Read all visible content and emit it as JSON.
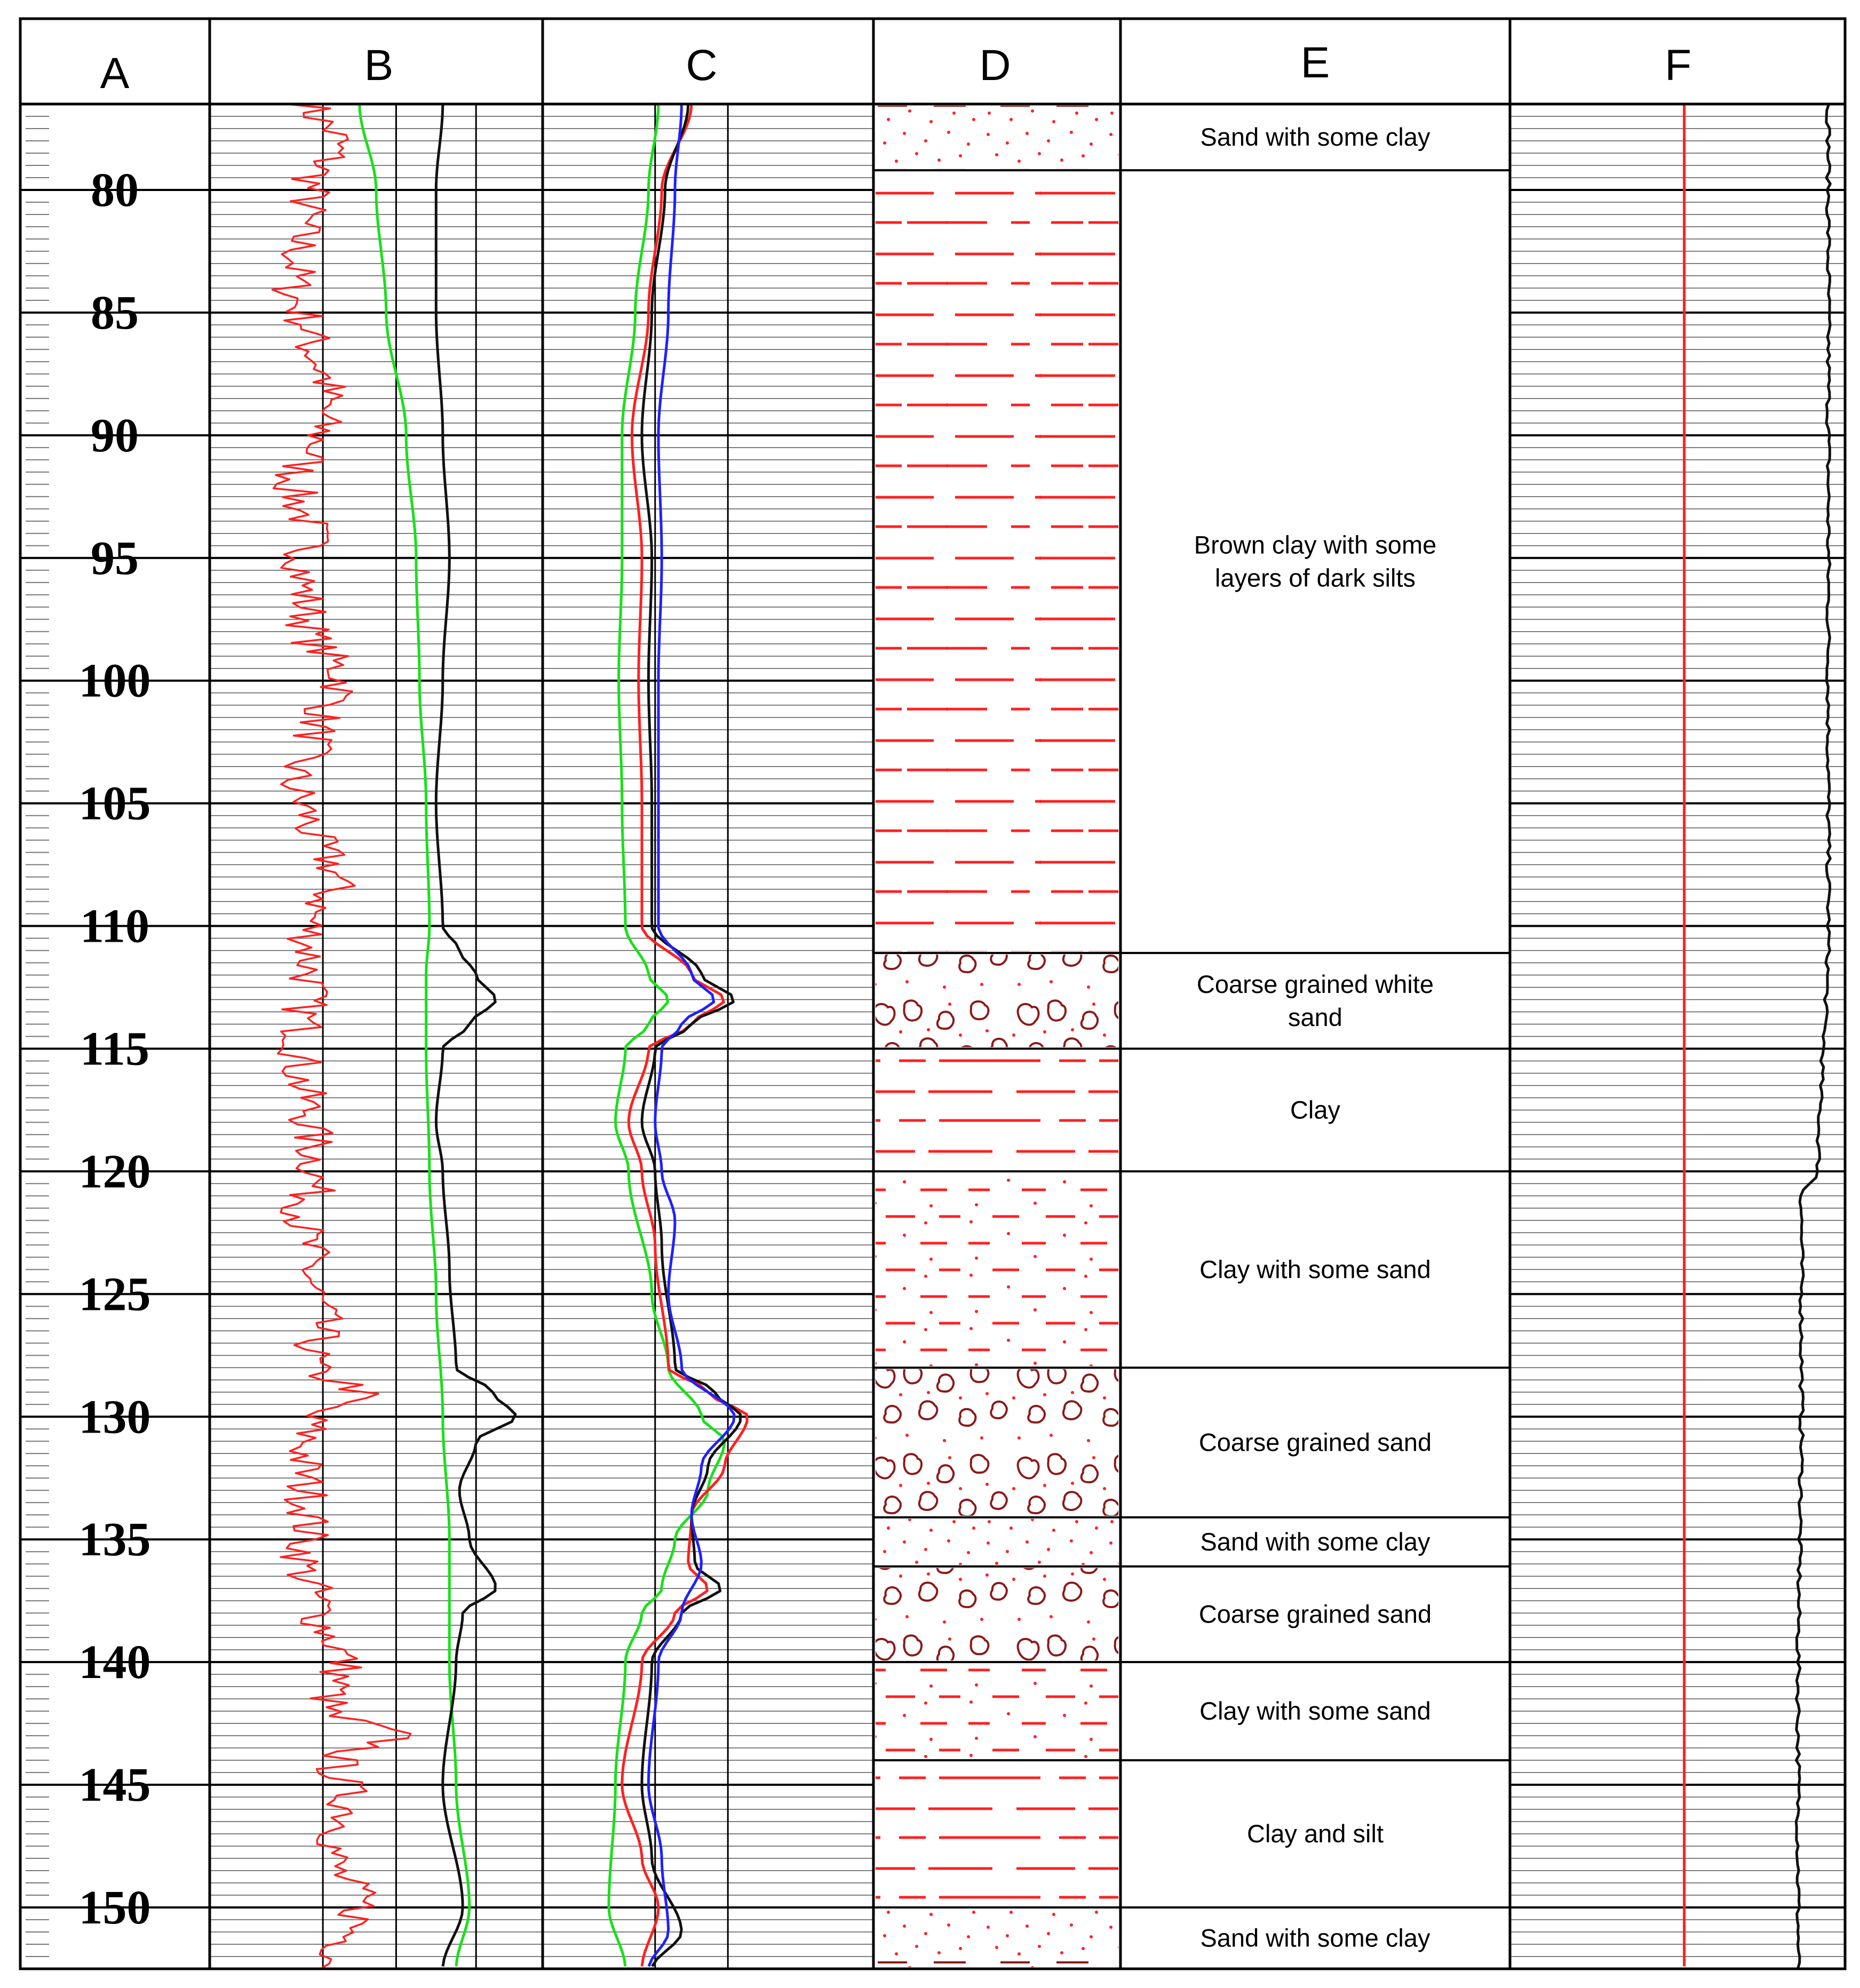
{
  "columns": [
    "A",
    "B",
    "C",
    "D",
    "E",
    "F"
  ],
  "depth_axis": {
    "min": 76.5,
    "max": 152.5,
    "labels": [
      80,
      85,
      90,
      95,
      100,
      105,
      110,
      115,
      120,
      125,
      130,
      135,
      140,
      145,
      150
    ]
  },
  "colors": {
    "red": "#ff2020",
    "green": "#18e018",
    "blue": "#2020ff",
    "black": "#111111",
    "brown": "#8b1a1a"
  },
  "units": [
    {
      "top": 76.5,
      "bottom": 79.2,
      "pattern": "sand-clay",
      "label": [
        "Sand with some clay"
      ]
    },
    {
      "top": 79.2,
      "bottom": 111.1,
      "pattern": "clay-silt",
      "label": [
        "Brown clay with some",
        "layers of dark silts"
      ]
    },
    {
      "top": 111.1,
      "bottom": 115.0,
      "pattern": "coarse-sand",
      "label": [
        "Coarse grained white",
        "sand"
      ]
    },
    {
      "top": 115.0,
      "bottom": 120.0,
      "pattern": "clay",
      "label": [
        "Clay"
      ]
    },
    {
      "top": 120.0,
      "bottom": 128.0,
      "pattern": "clay-sand",
      "label": [
        "Clay with some sand"
      ]
    },
    {
      "top": 128.0,
      "bottom": 134.1,
      "pattern": "coarse-sand",
      "label": [
        "Coarse grained sand"
      ]
    },
    {
      "top": 134.1,
      "bottom": 136.1,
      "pattern": "sand-clay",
      "label": [
        "Sand  with some clay"
      ]
    },
    {
      "top": 136.1,
      "bottom": 140.0,
      "pattern": "coarse-sand",
      "label": [
        "Coarse grained sand"
      ]
    },
    {
      "top": 140.0,
      "bottom": 144.0,
      "pattern": "clay-sand",
      "label": [
        "Clay with some sand"
      ]
    },
    {
      "top": 144.0,
      "bottom": 150.0,
      "pattern": "clay",
      "label": [
        "Clay and silt"
      ]
    },
    {
      "top": 150.0,
      "bottom": 152.5,
      "pattern": "sand-clay",
      "label": [
        "Sand  with some clay"
      ]
    }
  ],
  "chart_data": {
    "type": "line",
    "x_axis": "depth",
    "tracks": [
      {
        "column": "B",
        "series": [
          {
            "color": "red",
            "style": "noisy",
            "points": [
              [
                76.5,
                0.3
              ],
              [
                78,
                0.38
              ],
              [
                80,
                0.3
              ],
              [
                82,
                0.27
              ],
              [
                84,
                0.25
              ],
              [
                86,
                0.3
              ],
              [
                88,
                0.35
              ],
              [
                90,
                0.33
              ],
              [
                92,
                0.25
              ],
              [
                94,
                0.3
              ],
              [
                96,
                0.28
              ],
              [
                98,
                0.3
              ],
              [
                100,
                0.4
              ],
              [
                102,
                0.32
              ],
              [
                104,
                0.25
              ],
              [
                106,
                0.3
              ],
              [
                108,
                0.38
              ],
              [
                110,
                0.3
              ],
              [
                112,
                0.3
              ],
              [
                114,
                0.28
              ],
              [
                116,
                0.27
              ],
              [
                118,
                0.3
              ],
              [
                120,
                0.32
              ],
              [
                122,
                0.28
              ],
              [
                124,
                0.3
              ],
              [
                126,
                0.33
              ],
              [
                128,
                0.3
              ],
              [
                129,
                0.45
              ],
              [
                130,
                0.3
              ],
              [
                132,
                0.28
              ],
              [
                134,
                0.3
              ],
              [
                136,
                0.28
              ],
              [
                138,
                0.33
              ],
              [
                140,
                0.4
              ],
              [
                142,
                0.35
              ],
              [
                143,
                0.55
              ],
              [
                144,
                0.38
              ],
              [
                146,
                0.42
              ],
              [
                148,
                0.37
              ],
              [
                150,
                0.45
              ],
              [
                152.5,
                0.38
              ]
            ]
          },
          {
            "color": "green",
            "style": "smooth",
            "points": [
              [
                76.5,
                0.45
              ],
              [
                80,
                0.5
              ],
              [
                85,
                0.53
              ],
              [
                90,
                0.59
              ],
              [
                95,
                0.62
              ],
              [
                100,
                0.63
              ],
              [
                105,
                0.65
              ],
              [
                110,
                0.66
              ],
              [
                112,
                0.65
              ],
              [
                115,
                0.65
              ],
              [
                120,
                0.66
              ],
              [
                125,
                0.68
              ],
              [
                130,
                0.7
              ],
              [
                135,
                0.72
              ],
              [
                140,
                0.72
              ],
              [
                145,
                0.74
              ],
              [
                150,
                0.78
              ],
              [
                152.5,
                0.74
              ]
            ]
          },
          {
            "color": "black",
            "style": "smooth",
            "points": [
              [
                76.5,
                0.7
              ],
              [
                80,
                0.68
              ],
              [
                85,
                0.68
              ],
              [
                90,
                0.7
              ],
              [
                95,
                0.72
              ],
              [
                100,
                0.7
              ],
              [
                105,
                0.68
              ],
              [
                110,
                0.7
              ],
              [
                111,
                0.75
              ],
              [
                112,
                0.8
              ],
              [
                113,
                0.86
              ],
              [
                114,
                0.78
              ],
              [
                115,
                0.7
              ],
              [
                118,
                0.68
              ],
              [
                120,
                0.7
              ],
              [
                124,
                0.72
              ],
              [
                128,
                0.74
              ],
              [
                129,
                0.85
              ],
              [
                130,
                0.92
              ],
              [
                131,
                0.8
              ],
              [
                133,
                0.75
              ],
              [
                135,
                0.78
              ],
              [
                137,
                0.86
              ],
              [
                138,
                0.76
              ],
              [
                140,
                0.74
              ],
              [
                145,
                0.7
              ],
              [
                150,
                0.76
              ],
              [
                152.5,
                0.7
              ]
            ]
          }
        ]
      },
      {
        "column": "C",
        "series": [
          {
            "color": "green",
            "style": "smooth",
            "points": [
              [
                76.5,
                0.35
              ],
              [
                80,
                0.32
              ],
              [
                85,
                0.28
              ],
              [
                90,
                0.24
              ],
              [
                95,
                0.24
              ],
              [
                100,
                0.23
              ],
              [
                105,
                0.24
              ],
              [
                110,
                0.25
              ],
              [
                112,
                0.32
              ],
              [
                113,
                0.38
              ],
              [
                114,
                0.32
              ],
              [
                115,
                0.25
              ],
              [
                118,
                0.22
              ],
              [
                120,
                0.26
              ],
              [
                125,
                0.33
              ],
              [
                128,
                0.38
              ],
              [
                130,
                0.48
              ],
              [
                131,
                0.55
              ],
              [
                133,
                0.5
              ],
              [
                135,
                0.4
              ],
              [
                137,
                0.36
              ],
              [
                138,
                0.3
              ],
              [
                140,
                0.25
              ],
              [
                145,
                0.22
              ],
              [
                150,
                0.2
              ],
              [
                152.5,
                0.25
              ]
            ]
          },
          {
            "color": "red",
            "style": "smooth",
            "points": [
              [
                76.5,
                0.45
              ],
              [
                80,
                0.36
              ],
              [
                85,
                0.32
              ],
              [
                90,
                0.27
              ],
              [
                95,
                0.3
              ],
              [
                100,
                0.29
              ],
              [
                105,
                0.3
              ],
              [
                110,
                0.3
              ],
              [
                112,
                0.45
              ],
              [
                113,
                0.55
              ],
              [
                114,
                0.45
              ],
              [
                115,
                0.32
              ],
              [
                118,
                0.26
              ],
              [
                120,
                0.3
              ],
              [
                123,
                0.34
              ],
              [
                128,
                0.38
              ],
              [
                129,
                0.5
              ],
              [
                130,
                0.62
              ],
              [
                132,
                0.55
              ],
              [
                134,
                0.45
              ],
              [
                136,
                0.44
              ],
              [
                137,
                0.5
              ],
              [
                138,
                0.4
              ],
              [
                140,
                0.3
              ],
              [
                145,
                0.24
              ],
              [
                148,
                0.3
              ],
              [
                150,
                0.35
              ],
              [
                152.5,
                0.3
              ]
            ]
          },
          {
            "color": "black",
            "style": "smooth",
            "points": [
              [
                76.5,
                0.44
              ],
              [
                80,
                0.37
              ],
              [
                85,
                0.33
              ],
              [
                90,
                0.3
              ],
              [
                95,
                0.33
              ],
              [
                100,
                0.32
              ],
              [
                105,
                0.33
              ],
              [
                110,
                0.33
              ],
              [
                112,
                0.48
              ],
              [
                113,
                0.58
              ],
              [
                114,
                0.45
              ],
              [
                115,
                0.34
              ],
              [
                118,
                0.3
              ],
              [
                120,
                0.34
              ],
              [
                123,
                0.36
              ],
              [
                128,
                0.4
              ],
              [
                129,
                0.52
              ],
              [
                130,
                0.6
              ],
              [
                132,
                0.5
              ],
              [
                134,
                0.45
              ],
              [
                136,
                0.46
              ],
              [
                137,
                0.54
              ],
              [
                138,
                0.42
              ],
              [
                140,
                0.33
              ],
              [
                145,
                0.3
              ],
              [
                148,
                0.33
              ],
              [
                151,
                0.42
              ],
              [
                152.5,
                0.33
              ]
            ]
          },
          {
            "color": "blue",
            "style": "smooth",
            "points": [
              [
                76.5,
                0.42
              ],
              [
                80,
                0.4
              ],
              [
                85,
                0.38
              ],
              [
                90,
                0.35
              ],
              [
                95,
                0.36
              ],
              [
                100,
                0.35
              ],
              [
                105,
                0.35
              ],
              [
                110,
                0.35
              ],
              [
                112,
                0.45
              ],
              [
                113,
                0.52
              ],
              [
                114,
                0.42
              ],
              [
                115,
                0.36
              ],
              [
                118,
                0.34
              ],
              [
                120,
                0.36
              ],
              [
                122,
                0.4
              ],
              [
                125,
                0.38
              ],
              [
                128,
                0.42
              ],
              [
                130,
                0.58
              ],
              [
                132,
                0.48
              ],
              [
                134,
                0.45
              ],
              [
                136,
                0.48
              ],
              [
                138,
                0.42
              ],
              [
                140,
                0.35
              ],
              [
                145,
                0.32
              ],
              [
                148,
                0.36
              ],
              [
                151,
                0.38
              ],
              [
                152.5,
                0.32
              ]
            ]
          }
        ]
      },
      {
        "column": "F",
        "series": [
          {
            "color": "red",
            "style": "straight",
            "points": [
              [
                76.5,
                0.52
              ],
              [
                152.5,
                0.52
              ]
            ]
          },
          {
            "color": "black",
            "style": "jitter",
            "points": [
              [
                76.5,
                0.95
              ],
              [
                100,
                0.95
              ],
              [
                110,
                0.95
              ],
              [
                120,
                0.92
              ],
              [
                121,
                0.87
              ],
              [
                130,
                0.87
              ],
              [
                140,
                0.86
              ],
              [
                152.5,
                0.86
              ]
            ]
          }
        ]
      }
    ]
  }
}
